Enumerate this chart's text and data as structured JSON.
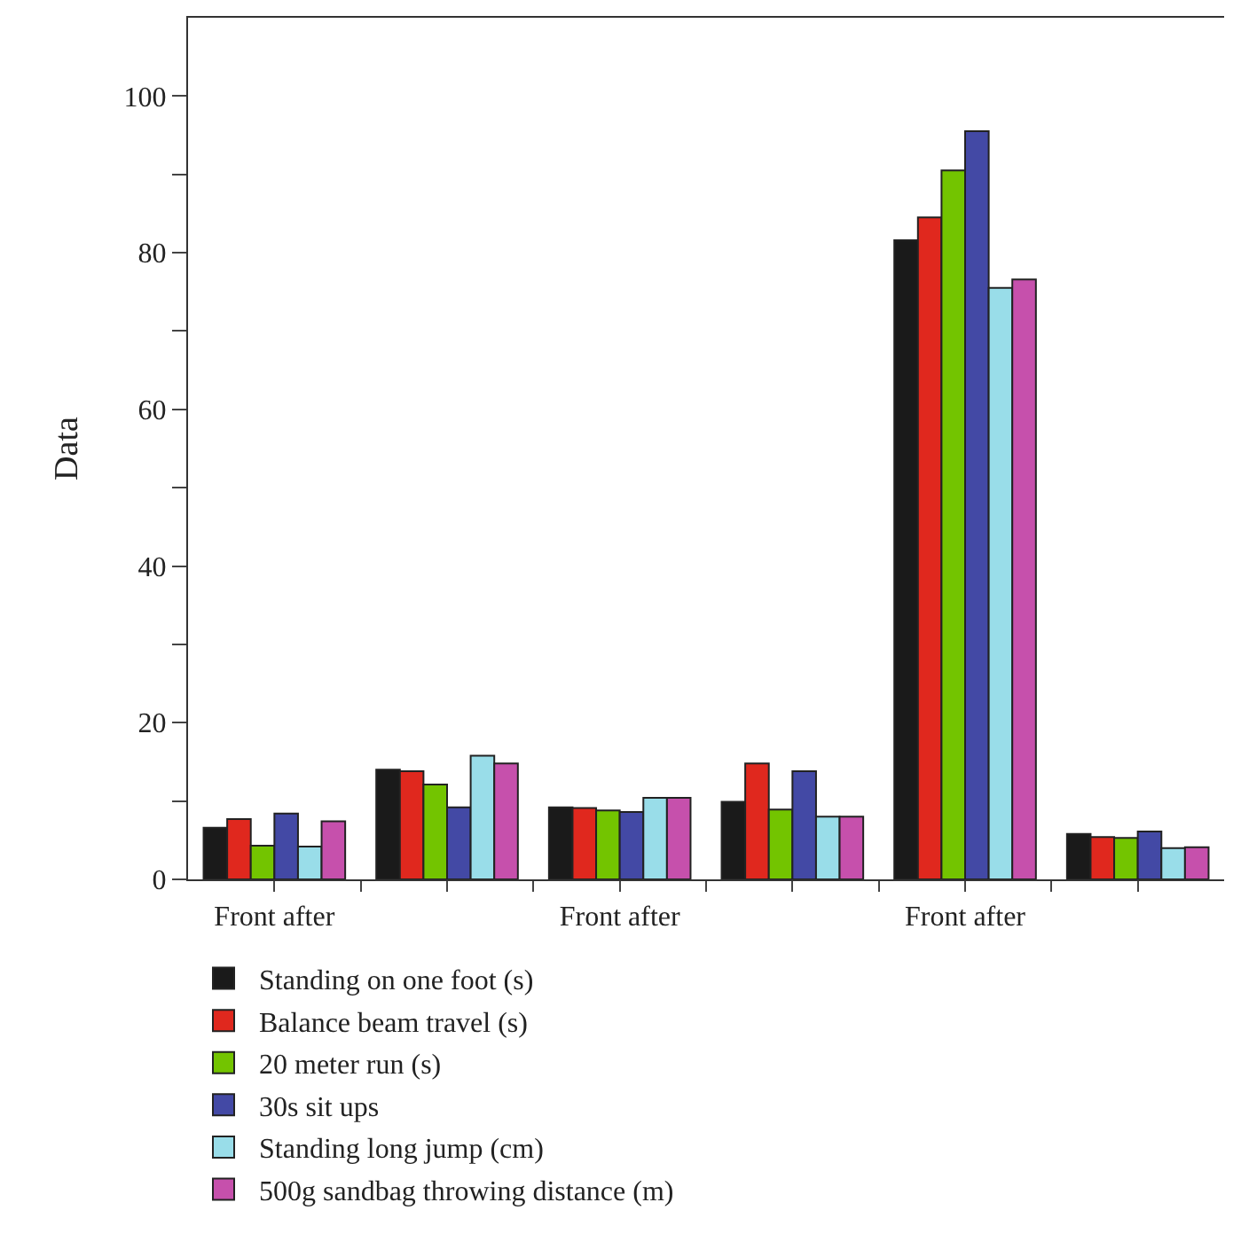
{
  "chart_data": {
    "type": "bar",
    "ylabel": "Data",
    "categories": [
      "Front after",
      null,
      "Front after",
      null,
      "Front after",
      null
    ],
    "series": [
      {
        "name": "Standing on one foot (s)",
        "color": "#1a1a1a",
        "values": [
          6.6,
          14.0,
          9.2,
          9.9,
          81.6,
          5.8
        ]
      },
      {
        "name": "Balance beam travel (s)",
        "color": "#e0281e",
        "values": [
          7.7,
          13.8,
          9.1,
          14.8,
          84.5,
          5.4
        ]
      },
      {
        "name": "20 meter run (s)",
        "color": "#73c400",
        "values": [
          4.3,
          12.1,
          8.8,
          8.9,
          90.5,
          5.3
        ]
      },
      {
        "name": "30s sit ups",
        "color": "#4349a5",
        "values": [
          8.4,
          9.2,
          8.6,
          13.8,
          95.5,
          6.1
        ]
      },
      {
        "name": "Standing long jump (cm)",
        "color": "#99dde9",
        "values": [
          4.2,
          15.8,
          10.4,
          8.0,
          75.5,
          4.0
        ]
      },
      {
        "name": "500g sandbag throwing distance (m)",
        "color": "#c650ac",
        "values": [
          7.4,
          14.8,
          10.4,
          8.0,
          76.6,
          4.1
        ]
      }
    ],
    "ylim": [
      0,
      110
    ],
    "yticks": [
      0,
      {
        "value": 10,
        "label": null
      },
      20,
      {
        "value": 30,
        "label": null
      },
      40,
      {
        "value": 50,
        "label": null
      },
      60,
      {
        "value": 70,
        "label": null
      },
      80,
      {
        "value": 90,
        "label": null
      },
      100
    ],
    "grid": false,
    "legend": "bottom"
  }
}
